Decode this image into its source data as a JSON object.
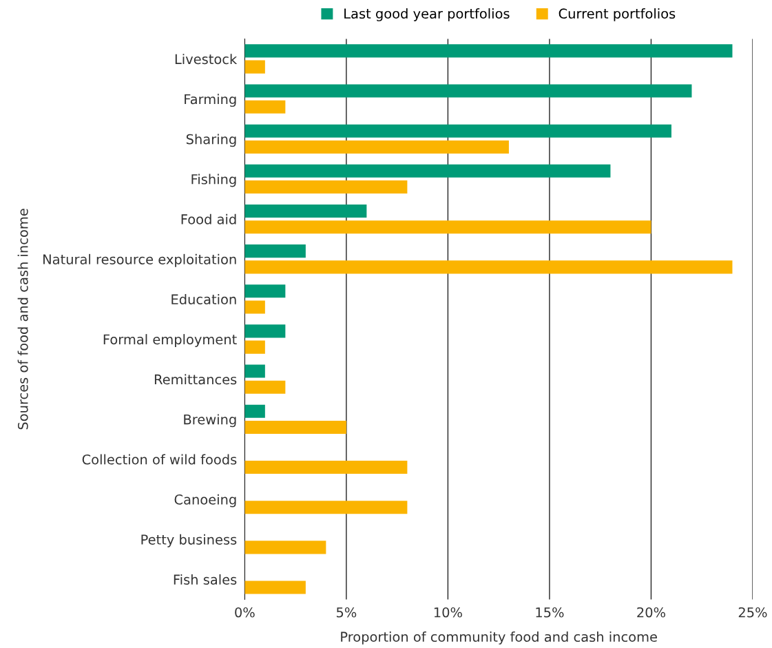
{
  "chart_data": {
    "type": "bar",
    "orientation": "horizontal",
    "xlabel": "Proportion of community food and cash income",
    "ylabel": "Sources of food and cash income",
    "categories": [
      "Livestock",
      "Farming",
      "Sharing",
      "Fishing",
      "Food aid",
      "Natural resource exploitation",
      "Education",
      "Formal employment",
      "Remittances",
      "Brewing",
      "Collection of wild foods",
      "Canoeing",
      "Petty business",
      "Fish sales"
    ],
    "series": [
      {
        "name": "Last good year portfolios",
        "color": "#009b77",
        "values": [
          24,
          22,
          21,
          18,
          6,
          3,
          2,
          2,
          1,
          1,
          null,
          null,
          null,
          null
        ]
      },
      {
        "name": "Current portfolios",
        "color": "#fbb400",
        "values": [
          1,
          2,
          13,
          8,
          20,
          24,
          1,
          1,
          2,
          5,
          8,
          8,
          4,
          3
        ]
      }
    ],
    "xlim": [
      0,
      25
    ],
    "xticks": [
      {
        "value": 0,
        "label": "0%"
      },
      {
        "value": 5,
        "label": "5%"
      },
      {
        "value": 10,
        "label": "10%"
      },
      {
        "value": 15,
        "label": "15%"
      },
      {
        "value": 20,
        "label": "20%"
      },
      {
        "value": 25,
        "label": "25%"
      }
    ],
    "grid": "x",
    "legend": "top"
  }
}
